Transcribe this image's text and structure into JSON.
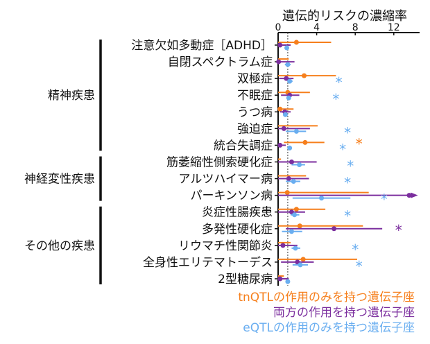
{
  "chart_data": {
    "type": "forest",
    "title": "遺伝的リスクの濃縮率",
    "xlim": [
      0,
      14.5
    ],
    "xticks": [
      0,
      4,
      8,
      12
    ],
    "reference_line": 1,
    "grid": false,
    "legend_position": "bottom-right",
    "colors": {
      "tn": "#f67f1c",
      "both": "#7b2e9e",
      "e": "#6aaef0"
    },
    "legend": [
      {
        "key": "tn",
        "label": "tnQTLの作用のみを持つ遺伝子座"
      },
      {
        "key": "both",
        "label": "両方の作用を持つ遺伝子座"
      },
      {
        "key": "e",
        "label": "eQTLの作用のみを持つ遺伝子座"
      }
    ],
    "groups": [
      {
        "label": "精神疾患",
        "rows": [
          0,
          6
        ]
      },
      {
        "label": "神経変性疾患",
        "rows": [
          7,
          9
        ]
      },
      {
        "label": "その他の疾患",
        "rows": [
          10,
          14
        ]
      }
    ],
    "diseases": [
      {
        "label": "注意欠如多動症［ADHD］",
        "tn": {
          "est": 1.9,
          "lo": 0,
          "hi": 5.5
        },
        "both": {
          "est": 0.2,
          "lo": 0,
          "hi": 1.3
        },
        "e": {
          "est": 0.9,
          "lo": 0.7,
          "hi": 1.1
        }
      },
      {
        "label": "自閉スペクトラム症",
        "tn": {
          "est": null,
          "lo": 0,
          "hi": 1.1
        },
        "both": {
          "est": 0.05,
          "lo": 0,
          "hi": 1.7
        },
        "e": {
          "est": 1.0,
          "lo": 0.7,
          "hi": 1.3
        }
      },
      {
        "label": "双極症",
        "tn": {
          "est": 2.7,
          "lo": 0,
          "hi": 6.0
        },
        "both": {
          "est": 0.85,
          "lo": 0.1,
          "hi": 1.6
        },
        "e": {
          "est": 1.2,
          "lo": 1.0,
          "hi": 1.5
        },
        "star": [
          {
            "key": "e",
            "x": 6.3
          }
        ]
      },
      {
        "label": "不眠症",
        "tn": {
          "est": 1.0,
          "lo": 0,
          "hi": 3.3
        },
        "both": {
          "est": 1.2,
          "lo": 0.3,
          "hi": 2.2
        },
        "e": {
          "est": 1.1,
          "lo": 0.9,
          "hi": 1.3
        },
        "star": [
          {
            "key": "e",
            "x": 6.0
          }
        ]
      },
      {
        "label": "うつ病",
        "tn": {
          "est": 0.2,
          "lo": 0,
          "hi": 1.6
        },
        "both": {
          "est": 0.7,
          "lo": 0.2,
          "hi": 1.3
        },
        "e": {
          "est": 0.75,
          "lo": 0.6,
          "hi": 0.9
        }
      },
      {
        "label": "強迫症",
        "tn": {
          "est": null,
          "lo": 0,
          "hi": 4.1
        },
        "both": {
          "est": 0.6,
          "lo": 0,
          "hi": 3.3
        },
        "e": {
          "est": 1.9,
          "lo": 0.8,
          "hi": 2.9
        },
        "star": [
          {
            "key": "e",
            "x": 7.2
          }
        ]
      },
      {
        "label": "統合失調症",
        "tn": {
          "est": 2.8,
          "lo": 0.6,
          "hi": 4.8
        },
        "both": {
          "est": 0.2,
          "lo": 0,
          "hi": 0.8
        },
        "e": {
          "est": 1.2,
          "lo": 1.1,
          "hi": 1.3
        },
        "star": [
          {
            "key": "e",
            "x": 6.7
          },
          {
            "key": "tn",
            "x": 8.4
          }
        ]
      },
      {
        "label": "筋萎縮性側索硬化症",
        "tn": {
          "est": null,
          "lo": 0,
          "hi": 0.3
        },
        "both": {
          "est": 1.4,
          "lo": 0,
          "hi": 4.0
        },
        "e": {
          "est": 2.2,
          "lo": 1.4,
          "hi": 2.8
        },
        "star": [
          {
            "key": "e",
            "x": 7.5
          }
        ]
      },
      {
        "label": "アルツハイマー病",
        "tn": {
          "est": null,
          "lo": 0,
          "hi": 2.9
        },
        "both": {
          "est": 1.1,
          "lo": 0,
          "hi": 3.2
        },
        "e": {
          "est": 1.6,
          "lo": 0.8,
          "hi": 2.3
        },
        "star": [
          {
            "key": "e",
            "x": 7.2
          }
        ]
      },
      {
        "label": "パーキンソン病",
        "tn": {
          "est": 0.95,
          "lo": 0,
          "hi": 9.4
        },
        "both": {
          "est": 13.6,
          "lo": 0,
          "hi": 14.5,
          "arrow": true
        },
        "e": {
          "est": 4.5,
          "lo": 1.5,
          "hi": 7.5
        },
        "star": [
          {
            "key": "e",
            "x": 11.0
          }
        ]
      },
      {
        "label": "炎症性腸疾患",
        "tn": {
          "est": 1.9,
          "lo": 0,
          "hi": 4.9
        },
        "both": {
          "est": 1.4,
          "lo": 0,
          "hi": 2.8
        },
        "e": {
          "est": 1.7,
          "lo": 1.3,
          "hi": 2.2
        },
        "star": [
          {
            "key": "e",
            "x": 7.2
          }
        ]
      },
      {
        "label": "多発性硬化症",
        "tn": {
          "est": 2.25,
          "lo": 0,
          "hi": 8.8
        },
        "both": {
          "est": 5.8,
          "lo": 0.8,
          "hi": 10.8
        },
        "e": {
          "est": 1.4,
          "lo": 0.4,
          "hi": 2.5
        },
        "star": [
          {
            "key": "both",
            "x": 12.5
          }
        ]
      },
      {
        "label": "リウマチ性関節炎",
        "tn": {
          "est": null,
          "lo": 0,
          "hi": 1.3
        },
        "both": {
          "est": 0.5,
          "lo": 0,
          "hi": 2.0
        },
        "e": {
          "est": 1.8,
          "lo": 1.4,
          "hi": 2.3
        },
        "star": [
          {
            "key": "e",
            "x": 8.0
          }
        ]
      },
      {
        "label": "全身性エリテマトーデス",
        "tn": {
          "est": 2.6,
          "lo": 0,
          "hi": 8.2
        },
        "both": {
          "est": 2.0,
          "lo": 0.3,
          "hi": 3.7
        },
        "e": {
          "est": 2.3,
          "lo": 1.5,
          "hi": 3.1
        },
        "star": [
          {
            "key": "e",
            "x": 8.4
          }
        ]
      },
      {
        "label": "2型糖尿病",
        "tn": {
          "est": null,
          "lo": 0,
          "hi": 0.6
        },
        "both": {
          "est": 0.2,
          "lo": 0,
          "hi": 1.1
        },
        "e": {
          "est": 1.0,
          "lo": 0.8,
          "hi": 1.2
        }
      }
    ]
  }
}
